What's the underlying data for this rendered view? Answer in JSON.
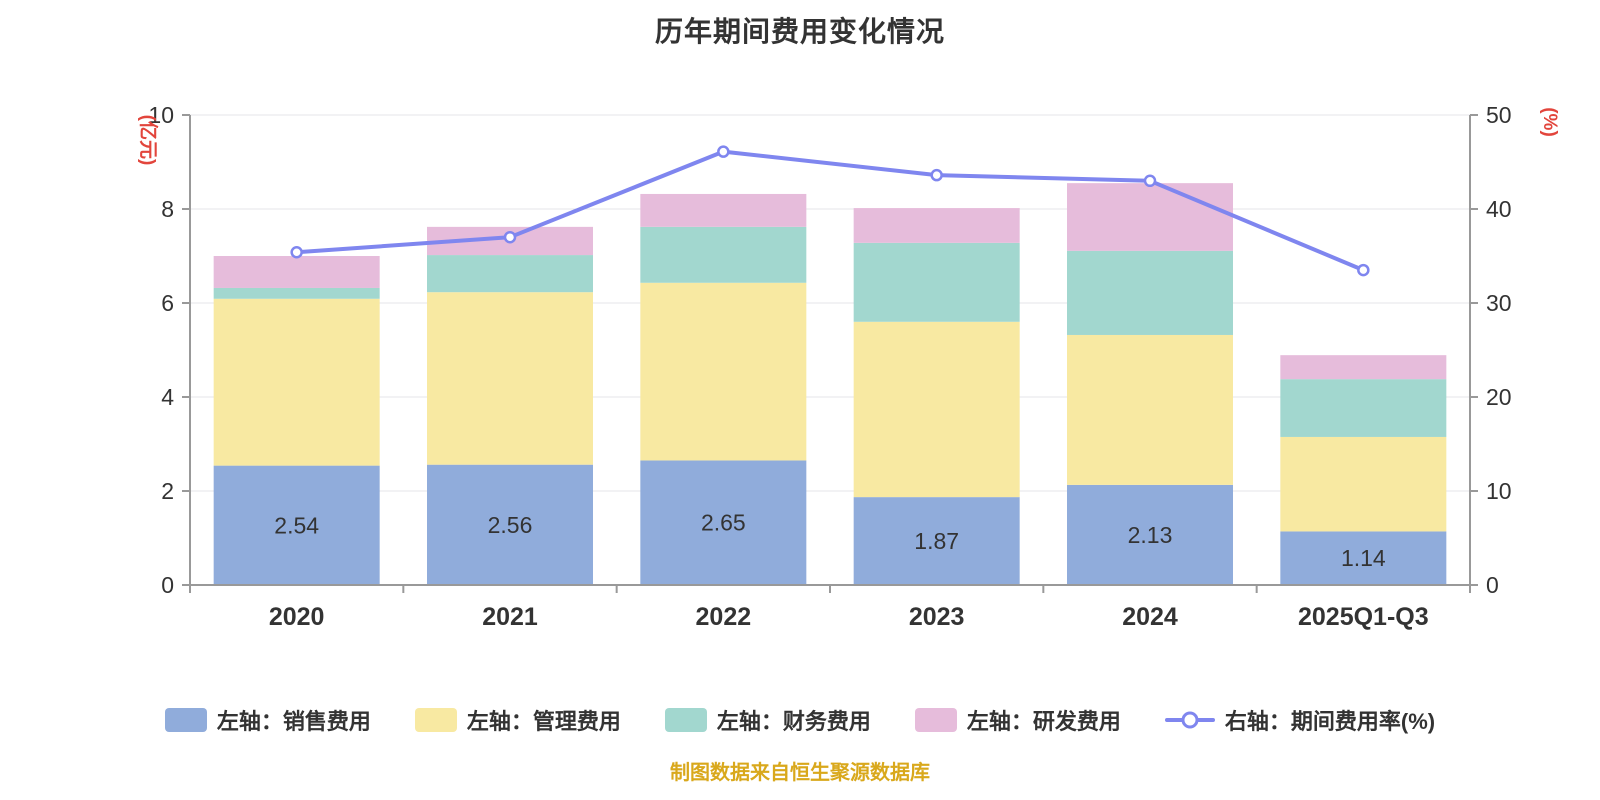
{
  "title": "历年期间费用变化情况",
  "footer_note": "制图数据来自恒生聚源数据库",
  "left_axis_unit": "(亿元)",
  "right_axis_unit": "(%)",
  "palette": {
    "title_text": "#333333",
    "axis_text": "#333333",
    "axis_line": "#999999",
    "grid_line": "#E4E4E8",
    "unit_text": "#E2453C",
    "footer_text": "#D9A81C",
    "bar_label_text": "#333333",
    "background": "#FFFFFF"
  },
  "chart_data": {
    "type": "bar",
    "title": "历年期间费用变化情况",
    "categories": [
      "2020",
      "2021",
      "2022",
      "2023",
      "2024",
      "2025Q1-Q3"
    ],
    "left_axis": {
      "label": "(亿元)",
      "min": 0,
      "max": 10,
      "ticks": [
        0,
        2,
        4,
        6,
        8,
        10
      ]
    },
    "right_axis": {
      "label": "(%)",
      "min": 0,
      "max": 50,
      "ticks": [
        0,
        10,
        20,
        30,
        40,
        50
      ]
    },
    "grid": true,
    "legend_position": "bottom",
    "series": [
      {
        "name": "左轴：销售费用",
        "type": "bar",
        "axis": "left",
        "color": "#90ACDB",
        "values": [
          2.54,
          2.56,
          2.65,
          1.87,
          2.13,
          1.14
        ],
        "value_labels": [
          "2.54",
          "2.56",
          "2.65",
          "1.87",
          "2.13",
          "1.14"
        ]
      },
      {
        "name": "左轴：管理费用",
        "type": "bar",
        "axis": "left",
        "color": "#F8E9A2",
        "values": [
          3.55,
          3.67,
          3.78,
          3.73,
          3.19,
          2.01
        ]
      },
      {
        "name": "左轴：财务费用",
        "type": "bar",
        "axis": "left",
        "color": "#A2D7CF",
        "values": [
          0.23,
          0.79,
          1.19,
          1.68,
          1.79,
          1.23
        ]
      },
      {
        "name": "左轴：研发费用",
        "type": "bar",
        "axis": "left",
        "color": "#E6BCDB",
        "values": [
          0.68,
          0.6,
          0.7,
          0.74,
          1.44,
          0.51
        ]
      },
      {
        "name": "右轴：期间费用率(%)",
        "type": "line",
        "axis": "right",
        "color": "#7F86EF",
        "values": [
          35.4,
          37.0,
          46.1,
          43.6,
          43.0,
          33.5
        ]
      }
    ]
  }
}
